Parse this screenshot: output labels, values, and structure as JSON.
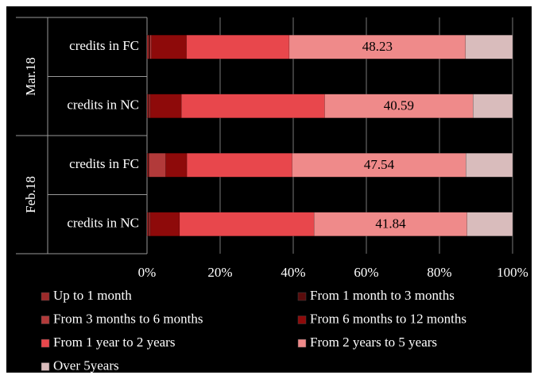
{
  "chart_data": {
    "type": "stacked-bar-horizontal",
    "groups": [
      {
        "label": "Mar.18",
        "categories": [
          "credits in FC",
          "credits in NC"
        ]
      },
      {
        "label": "Feb.18",
        "categories": [
          "credits in FC",
          "credits in NC"
        ]
      }
    ],
    "series": [
      {
        "name": "Up to 1 month",
        "color": "#9c2a2a",
        "values": [
          0.5,
          0.4,
          0.3,
          0.4
        ]
      },
      {
        "name": "From 1 month to 3 months",
        "color": "#5a0c0c",
        "values": [
          0.3,
          0.2,
          0.2,
          0.2
        ]
      },
      {
        "name": "From 3 months to 6 months",
        "color": "#b23a3a",
        "values": [
          0.4,
          0.3,
          4.6,
          0.3
        ]
      },
      {
        "name": "From 6 months to 12 months",
        "color": "#8e0a0a",
        "values": [
          9.6,
          8.5,
          5.8,
          8.0
        ]
      },
      {
        "name": "From 1 year to 2 years",
        "color": "#e8474c",
        "values": [
          28.1,
          39.2,
          28.8,
          36.8
        ]
      },
      {
        "name": "From 2 years to 5 years",
        "color": "#ef8a8a",
        "values": [
          48.23,
          40.59,
          47.54,
          41.84
        ],
        "show_labels": true
      },
      {
        "name": "Over 5years",
        "color": "#d9bcbc",
        "values": [
          12.87,
          10.81,
          12.76,
          12.46
        ]
      }
    ],
    "xlim": [
      0,
      100
    ],
    "xticks": [
      {
        "value": 0,
        "label": "0%"
      },
      {
        "value": 20,
        "label": "20%"
      },
      {
        "value": 40,
        "label": "40%"
      },
      {
        "value": 60,
        "label": "60%"
      },
      {
        "value": 80,
        "label": "80%"
      },
      {
        "value": 100,
        "label": "100%"
      }
    ],
    "grid": true
  }
}
